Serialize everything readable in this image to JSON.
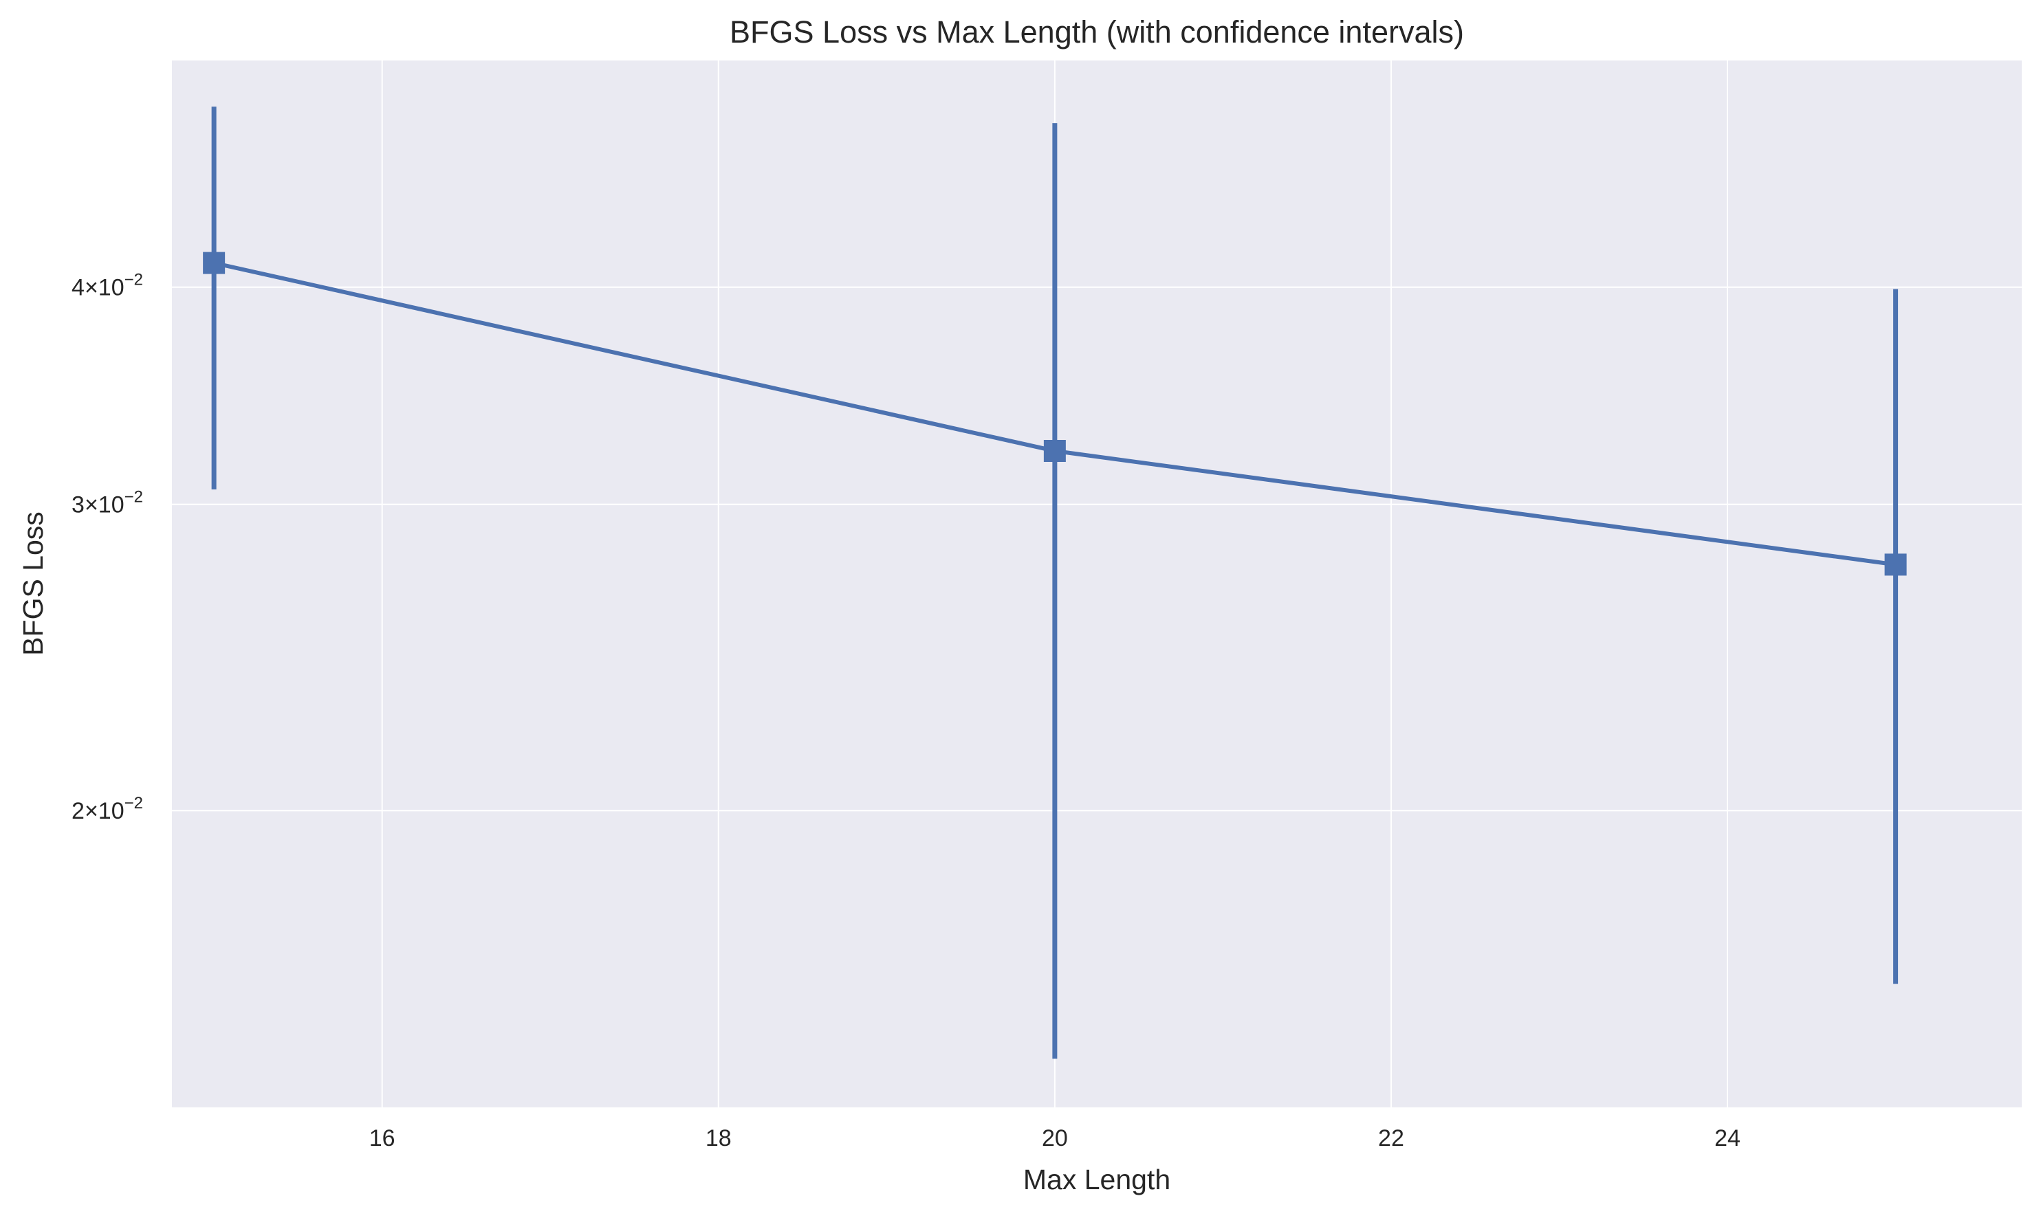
{
  "chart_data": {
    "type": "line",
    "title": "BFGS Loss vs Max Length (with confidence intervals)",
    "xlabel": "Max Length",
    "ylabel": "BFGS Loss",
    "xlim": [
      14.75,
      25.75
    ],
    "ylim": [
      0.0135,
      0.054
    ],
    "yscale": "log",
    "grid": true,
    "legend": "none",
    "x_ticks": [
      {
        "value": 16,
        "label": "16"
      },
      {
        "value": 18,
        "label": "18"
      },
      {
        "value": 20,
        "label": "20"
      },
      {
        "value": 22,
        "label": "22"
      },
      {
        "value": 24,
        "label": "24"
      }
    ],
    "y_ticks": [
      {
        "value": 0.02,
        "mantissa": "2",
        "base": "×10",
        "exponent": "−2"
      },
      {
        "value": 0.03,
        "mantissa": "3",
        "base": "×10",
        "exponent": "−2"
      },
      {
        "value": 0.04,
        "mantissa": "4",
        "base": "×10",
        "exponent": "−2"
      }
    ],
    "series": [
      {
        "marker": "square",
        "color": "#4C72B0",
        "points": [
          {
            "x": 15,
            "y": 0.0413,
            "ci_low": 0.0306,
            "ci_high": 0.0508
          },
          {
            "x": 20,
            "y": 0.0322,
            "ci_low": 0.0144,
            "ci_high": 0.0497
          },
          {
            "x": 25,
            "y": 0.0277,
            "ci_low": 0.0159,
            "ci_high": 0.0399
          }
        ]
      }
    ]
  },
  "colors": {
    "plot_background": "#EAEAF2",
    "grid": "#FFFFFF",
    "series": "#4C72B0",
    "text": "#262626"
  }
}
